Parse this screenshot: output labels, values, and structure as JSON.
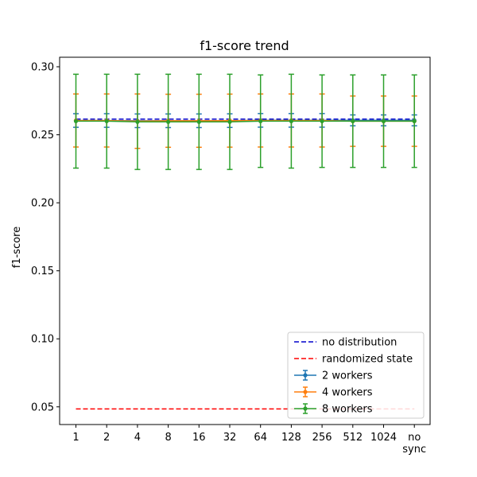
{
  "chart_data": {
    "type": "line",
    "title": "f1-score trend",
    "xlabel": "",
    "ylabel": "f1-score",
    "categories": [
      "1",
      "2",
      "4",
      "8",
      "16",
      "32",
      "64",
      "128",
      "256",
      "512",
      "1024",
      "no\nsync"
    ],
    "ylim": [
      0.037,
      0.307
    ],
    "yticks": [
      0.05,
      0.1,
      0.15,
      0.2,
      0.25,
      0.3
    ],
    "ytick_labels": [
      "0.05",
      "0.10",
      "0.15",
      "0.20",
      "0.25",
      "0.30"
    ],
    "grid": false,
    "legend_placement": "lower-right",
    "reference_lines": [
      {
        "name": "no distribution",
        "value": 0.2615,
        "color": "#0000cc",
        "style": "dashed"
      },
      {
        "name": "randomized state",
        "value": 0.0485,
        "color": "#ff0000",
        "style": "dashed"
      }
    ],
    "series": [
      {
        "name": "2 workers",
        "color": "#1f77b4",
        "values": [
          0.2605,
          0.2605,
          0.2603,
          0.2603,
          0.2603,
          0.2604,
          0.2606,
          0.2606,
          0.2606,
          0.2606,
          0.2606,
          0.2606
        ],
        "errors": [
          0.005,
          0.005,
          0.005,
          0.005,
          0.005,
          0.005,
          0.005,
          0.005,
          0.005,
          0.004,
          0.004,
          0.004
        ]
      },
      {
        "name": "4 workers",
        "color": "#ff7f0e",
        "values": [
          0.2605,
          0.2605,
          0.26,
          0.2603,
          0.2603,
          0.2604,
          0.2605,
          0.2605,
          0.2605,
          0.26,
          0.26,
          0.26
        ],
        "errors": [
          0.0195,
          0.0195,
          0.02,
          0.0195,
          0.0195,
          0.0195,
          0.0195,
          0.0195,
          0.0195,
          0.0185,
          0.0185,
          0.0185
        ]
      },
      {
        "name": "8 workers",
        "color": "#2ca02c",
        "values": [
          0.26,
          0.26,
          0.2595,
          0.2595,
          0.2595,
          0.2595,
          0.26,
          0.26,
          0.26,
          0.26,
          0.26,
          0.26
        ],
        "errors": [
          0.0345,
          0.0345,
          0.035,
          0.035,
          0.035,
          0.035,
          0.034,
          0.0345,
          0.034,
          0.034,
          0.034,
          0.034
        ]
      }
    ]
  }
}
